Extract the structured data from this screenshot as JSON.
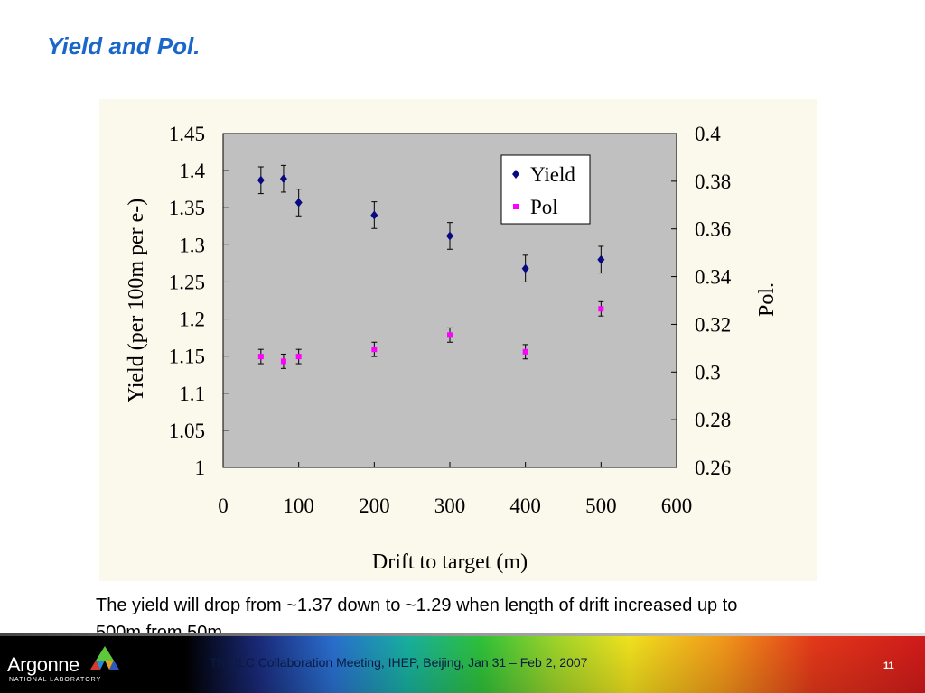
{
  "slide": {
    "title": "Yield and Pol.",
    "caption": "The yield will drop from ~1.37 down to ~1.29 when length of drift increased up to 500m from 50m."
  },
  "footer": {
    "logo_text": "Argonne",
    "logo_subtext": "NATIONAL LABORATORY",
    "meeting": "The ILC Collaboration Meeting, IHEP, Beijing, Jan 31 – Feb 2, 2007",
    "page_number": "11"
  },
  "colors": {
    "title": "#1a66c9",
    "plot_background": "#c0c0c0",
    "panel_background": "#fbf8ec",
    "yield_marker": "#0a0a80",
    "pol_marker": "#ff00ff"
  },
  "chart_data": {
    "type": "scatter",
    "title": "",
    "xlabel": "Drift to target (m)",
    "ylabel": "Yield (per 100m per e-)",
    "y2label": "Pol.",
    "xlim": [
      0,
      600
    ],
    "ylim": [
      1,
      1.45
    ],
    "y2lim": [
      0.26,
      0.4
    ],
    "x_ticks": [
      "0",
      "100",
      "200",
      "300",
      "400",
      "500",
      "600"
    ],
    "y_ticks": [
      "1",
      "1.05",
      "1.1",
      "1.15",
      "1.2",
      "1.25",
      "1.3",
      "1.35",
      "1.4",
      "1.45"
    ],
    "y2_ticks": [
      "0.26",
      "0.28",
      "0.3",
      "0.32",
      "0.34",
      "0.36",
      "0.38",
      "0.4"
    ],
    "legend_position": "top-right",
    "grid": false,
    "series": [
      {
        "name": "Yield",
        "axis": "left",
        "marker": "diamond",
        "color": "#0a0a80",
        "x": [
          50,
          80,
          100,
          200,
          300,
          400,
          500
        ],
        "y": [
          1.387,
          1.389,
          1.357,
          1.34,
          1.312,
          1.268,
          1.28
        ],
        "err": [
          0.018,
          0.018,
          0.018,
          0.018,
          0.018,
          0.018,
          0.018
        ]
      },
      {
        "name": "Pol",
        "axis": "right",
        "marker": "square",
        "color": "#ff00ff",
        "x": [
          50,
          80,
          100,
          200,
          300,
          400,
          500
        ],
        "y": [
          0.3065,
          0.3045,
          0.3065,
          0.3095,
          0.3155,
          0.3085,
          0.3265
        ],
        "err": [
          0.003,
          0.003,
          0.003,
          0.003,
          0.003,
          0.003,
          0.003
        ]
      }
    ]
  }
}
